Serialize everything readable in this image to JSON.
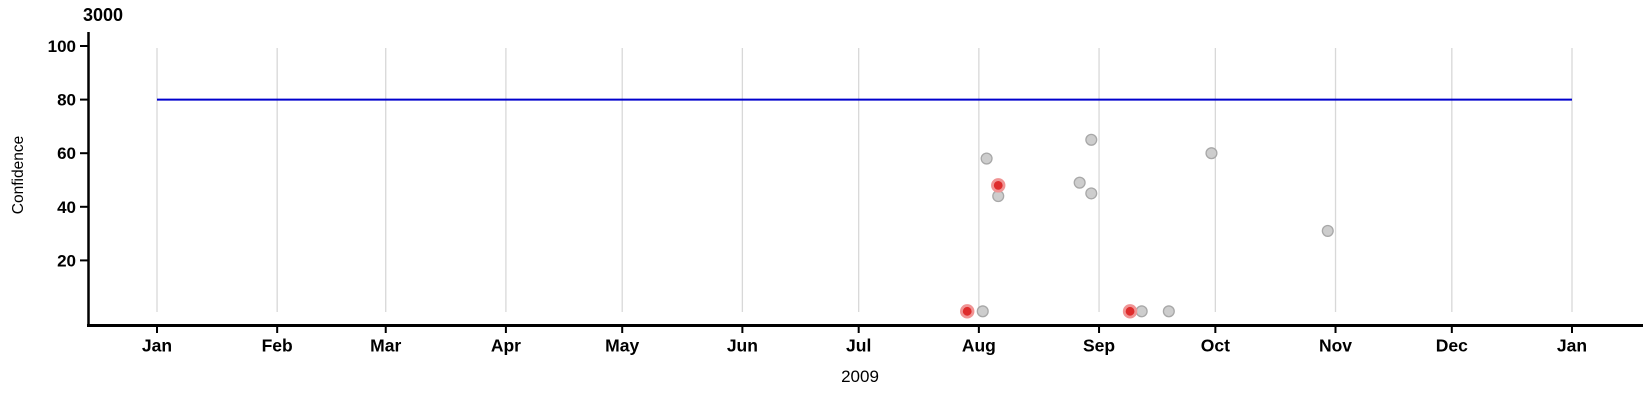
{
  "chart_data": {
    "type": "scatter",
    "title": "3000",
    "xlabel": "2009",
    "ylabel": "Confidence",
    "ylim": [
      0,
      100
    ],
    "y_ticks": [
      20,
      40,
      60,
      80,
      100
    ],
    "x_range": [
      "2009-01-01",
      "2010-01-01"
    ],
    "x_tick_labels": [
      "Jan",
      "Feb",
      "Mar",
      "Apr",
      "May",
      "Jun",
      "Jul",
      "Aug",
      "Sep",
      "Oct",
      "Nov",
      "Dec",
      "Jan"
    ],
    "grid": true,
    "legend": "none",
    "threshold_line": {
      "value": 80,
      "color": "#0000CD"
    },
    "points": [
      {
        "date": "2009-07-29",
        "confidence": 1,
        "highlighted": true
      },
      {
        "date": "2009-08-02",
        "confidence": 1,
        "highlighted": false
      },
      {
        "date": "2009-08-03",
        "confidence": 58,
        "highlighted": false
      },
      {
        "date": "2009-08-06",
        "confidence": 48,
        "highlighted": true
      },
      {
        "date": "2009-08-06",
        "confidence": 44,
        "highlighted": false
      },
      {
        "date": "2009-08-27",
        "confidence": 49,
        "highlighted": false
      },
      {
        "date": "2009-08-30",
        "confidence": 65,
        "highlighted": false
      },
      {
        "date": "2009-08-30",
        "confidence": 45,
        "highlighted": false
      },
      {
        "date": "2009-09-09",
        "confidence": 1,
        "highlighted": true
      },
      {
        "date": "2009-09-12",
        "confidence": 1,
        "highlighted": false
      },
      {
        "date": "2009-09-19",
        "confidence": 1,
        "highlighted": false
      },
      {
        "date": "2009-09-30",
        "confidence": 60,
        "highlighted": false
      },
      {
        "date": "2009-10-30",
        "confidence": 31,
        "highlighted": false
      }
    ],
    "colors": {
      "point_fill": "#CDCDCD",
      "point_stroke": "#A8A8A8",
      "highlight_fill": "#DE2C2C",
      "highlight_stroke": "#F09494",
      "grid": "#D8D8D8",
      "axis": "#000000",
      "threshold": "#0000CD"
    }
  }
}
